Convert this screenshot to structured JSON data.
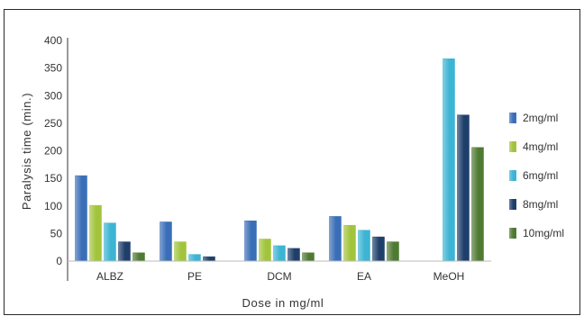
{
  "chart_data": {
    "type": "bar",
    "title": "",
    "xlabel": "Dose  in mg/ml",
    "ylabel": "Paralysis time (min.)",
    "ylim": [
      0,
      400
    ],
    "yticks": [
      0,
      50,
      100,
      150,
      200,
      250,
      300,
      350,
      400
    ],
    "grid": false,
    "legend_position": "right",
    "categories": [
      "ALBZ",
      "PE",
      "DCM",
      "EA",
      "MeOH"
    ],
    "series": [
      {
        "name": "2mg/ml",
        "color": "#3a6fb8",
        "values": [
          155,
          71,
          73,
          81,
          0
        ]
      },
      {
        "name": "4mg/ml",
        "color": "#a2c43c",
        "values": [
          101,
          35,
          40,
          65,
          0
        ]
      },
      {
        "name": "6mg/ml",
        "color": "#3cb4d3",
        "values": [
          69,
          12,
          28,
          56,
          367
        ]
      },
      {
        "name": "8mg/ml",
        "color": "#1f3f6b",
        "values": [
          35,
          8,
          23,
          44,
          265
        ]
      },
      {
        "name": "10mg/ml",
        "color": "#4f7a32",
        "values": [
          15,
          0,
          15,
          35,
          206
        ]
      }
    ]
  }
}
